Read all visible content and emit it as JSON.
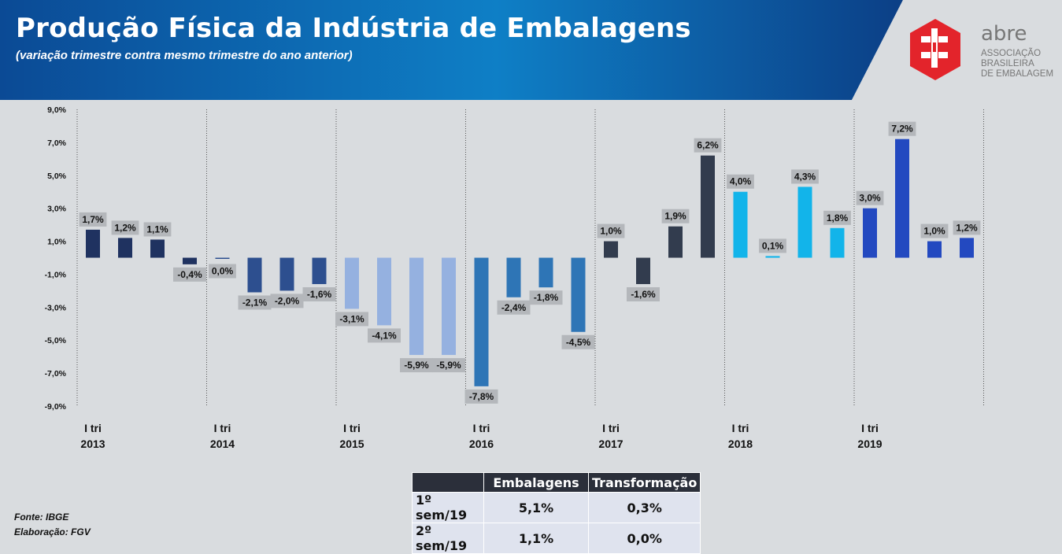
{
  "header": {
    "title": "Produção Física da Indústria de Embalagens",
    "subtitle": "(variação trimestre contra mesmo trimestre do ano anterior)",
    "logo_word": "abre",
    "logo_lines": [
      "ASSOCIAÇÃO",
      "BRASILEIRA",
      "DE EMBALAGEM"
    ]
  },
  "colors": {
    "header_gradient_start": "#0a3f86",
    "header_gradient_end": "#0f8fd0",
    "logo_red": "#e3242b",
    "2013": "#1f3260",
    "2014": "#2d4f8f",
    "2015": "#95b1e0",
    "2016": "#2e75b6",
    "2017": "#323c4e",
    "2018": "#12b4ea",
    "2019": "#2349c0",
    "label_box": "#b4b7bb"
  },
  "chart_data": {
    "type": "bar",
    "title": "",
    "xlabel": "",
    "ylabel": "",
    "ylim": [
      -9,
      9
    ],
    "yticks": [
      "9,0%",
      "7,0%",
      "5,0%",
      "3,0%",
      "1,0%",
      "-1,0%",
      "-3,0%",
      "-5,0%",
      "-7,0%",
      "-9,0%"
    ],
    "groups": [
      {
        "year": "2013",
        "quarter_label": "I tri",
        "values": [
          1.7,
          1.2,
          1.1,
          -0.4
        ],
        "labels": [
          "1,7%",
          "1,2%",
          "1,1%",
          "-0,4%"
        ]
      },
      {
        "year": "2014",
        "quarter_label": "I tri",
        "values": [
          0.0,
          -2.1,
          -2.0,
          -1.6
        ],
        "labels": [
          "0,0%",
          "-2,1%",
          "-2,0%",
          "-1,6%"
        ]
      },
      {
        "year": "2015",
        "quarter_label": "I tri",
        "values": [
          -3.1,
          -4.1,
          -5.9,
          -5.9
        ],
        "labels": [
          "-3,1%",
          "-4,1%",
          "-5,9%",
          "-5,9%"
        ]
      },
      {
        "year": "2016",
        "quarter_label": "I tri",
        "values": [
          -7.8,
          -2.4,
          -1.8,
          -4.5
        ],
        "labels": [
          "-7,8%",
          "-2,4%",
          "-1,8%",
          "-4,5%"
        ]
      },
      {
        "year": "2017",
        "quarter_label": "I tri",
        "values": [
          1.0,
          -1.6,
          1.9,
          6.2
        ],
        "labels": [
          "1,0%",
          "-1,6%",
          "1,9%",
          "6,2%"
        ]
      },
      {
        "year": "2018",
        "quarter_label": "I tri",
        "values": [
          4.0,
          0.1,
          4.3,
          1.8
        ],
        "labels": [
          "4,0%",
          "0,1%",
          "4,3%",
          "1,8%"
        ]
      },
      {
        "year": "2019",
        "quarter_label": "I tri",
        "values": [
          3.0,
          7.2,
          1.0,
          1.2
        ],
        "labels": [
          "3,0%",
          "7,2%",
          "1,0%",
          "1,2%"
        ]
      }
    ]
  },
  "table": {
    "headers": [
      "",
      "Embalagens",
      "Transformação"
    ],
    "rows": [
      {
        "label": "1º sem/19",
        "embalagens": "5,1%",
        "transformacao": "0,3%"
      },
      {
        "label": "2º sem/19",
        "embalagens": "1,1%",
        "transformacao": "0,0%"
      }
    ]
  },
  "footer": {
    "fonte": "Fonte: IBGE",
    "elaboracao": "Elaboração:  FGV"
  }
}
